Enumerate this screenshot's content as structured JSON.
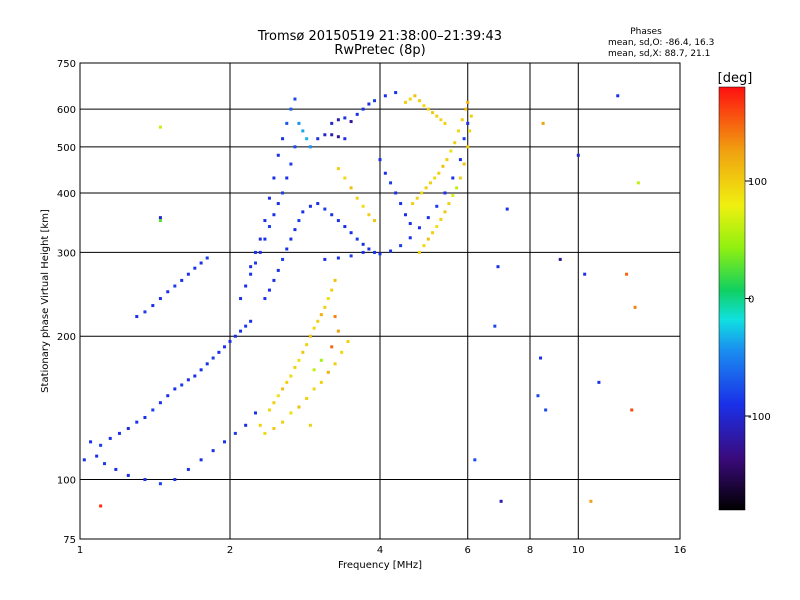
{
  "chart_data": {
    "type": "scatter",
    "title": "Tromsø 20150519 21:38:00–21:39:43",
    "subtitle": "RwPretec (8p)",
    "xlabel": "Frequency [MHz]",
    "ylabel": "Stationary phase Virtual Height [km]",
    "x_scale": "log",
    "y_scale": "log",
    "xlim": [
      1,
      16
    ],
    "ylim": [
      75,
      750
    ],
    "x_ticks": [
      1,
      2,
      4,
      6,
      8,
      10,
      16
    ],
    "x_tick_labels": [
      "1",
      "2",
      "4",
      "6",
      "8",
      "10",
      "16"
    ],
    "y_ticks": [
      75,
      100,
      200,
      300,
      400,
      500,
      600,
      750
    ],
    "y_tick_labels": [
      "75",
      "100",
      "200",
      "300",
      "400",
      "500",
      "600",
      "750"
    ],
    "grid": true,
    "phase_info": {
      "header": "Phases",
      "line_o": "mean, sd,O: -86.4, 16.3",
      "line_x": "mean, sd,X: 88.7, 21.1"
    },
    "colorbar": {
      "label": "[deg]",
      "range": [
        -180,
        180
      ],
      "ticks": [
        100,
        0,
        -100
      ],
      "tick_labels": [
        "100",
        "0",
        "-100"
      ]
    },
    "colors": {
      "o_mode": "#1a3fe0",
      "o_mode_light": "#2a8be8",
      "x_mode": "#e8d21a",
      "x_mode_green": "#8ee82a",
      "noise": "#e06020"
    },
    "points": [
      [
        1.05,
        120,
        -100
      ],
      [
        1.1,
        118,
        -95
      ],
      [
        1.15,
        122,
        -100
      ],
      [
        1.2,
        125,
        -100
      ],
      [
        1.25,
        128,
        -105
      ],
      [
        1.3,
        132,
        -100
      ],
      [
        1.35,
        135,
        -100
      ],
      [
        1.4,
        140,
        -95
      ],
      [
        1.45,
        145,
        -100
      ],
      [
        1.5,
        150,
        -100
      ],
      [
        1.55,
        155,
        -100
      ],
      [
        1.6,
        158,
        -95
      ],
      [
        1.65,
        162,
        -100
      ],
      [
        1.7,
        165,
        -100
      ],
      [
        1.75,
        170,
        -100
      ],
      [
        1.8,
        175,
        -100
      ],
      [
        1.85,
        180,
        -95
      ],
      [
        1.9,
        185,
        -100
      ],
      [
        1.95,
        190,
        -100
      ],
      [
        2.0,
        195,
        -100
      ],
      [
        2.05,
        200,
        -100
      ],
      [
        2.1,
        205,
        -100
      ],
      [
        2.15,
        210,
        -95
      ],
      [
        2.2,
        215,
        -100
      ],
      [
        1.02,
        110,
        -100
      ],
      [
        1.08,
        112,
        -100
      ],
      [
        1.12,
        108,
        -95
      ],
      [
        1.18,
        105,
        -100
      ],
      [
        1.25,
        102,
        -100
      ],
      [
        1.35,
        100,
        -100
      ],
      [
        1.45,
        98,
        -95
      ],
      [
        1.55,
        100,
        -100
      ],
      [
        1.65,
        105,
        -100
      ],
      [
        1.75,
        110,
        -100
      ],
      [
        1.85,
        115,
        -100
      ],
      [
        1.95,
        120,
        -100
      ],
      [
        2.05,
        125,
        -95
      ],
      [
        2.15,
        130,
        -100
      ],
      [
        2.25,
        138,
        -100
      ],
      [
        1.3,
        220,
        -100
      ],
      [
        1.35,
        225,
        -95
      ],
      [
        1.4,
        232,
        -100
      ],
      [
        1.45,
        240,
        -100
      ],
      [
        1.5,
        248,
        -100
      ],
      [
        1.55,
        255,
        -95
      ],
      [
        1.6,
        262,
        -100
      ],
      [
        1.65,
        270,
        -100
      ],
      [
        1.7,
        278,
        -100
      ],
      [
        1.75,
        285,
        -100
      ],
      [
        1.8,
        292,
        -95
      ],
      [
        2.1,
        240,
        -100
      ],
      [
        2.15,
        255,
        -100
      ],
      [
        2.2,
        270,
        -100
      ],
      [
        2.25,
        285,
        -95
      ],
      [
        2.3,
        300,
        -100
      ],
      [
        2.35,
        320,
        -100
      ],
      [
        2.4,
        340,
        -95
      ],
      [
        2.45,
        360,
        -100
      ],
      [
        2.5,
        380,
        -100
      ],
      [
        2.55,
        400,
        -95
      ],
      [
        2.6,
        430,
        -100
      ],
      [
        2.65,
        460,
        -95
      ],
      [
        2.7,
        500,
        -90
      ],
      [
        2.6,
        560,
        -85
      ],
      [
        2.65,
        600,
        -80
      ],
      [
        2.7,
        630,
        -90
      ],
      [
        2.75,
        560,
        -60
      ],
      [
        2.8,
        540,
        -50
      ],
      [
        2.85,
        520,
        -40
      ],
      [
        2.9,
        500,
        -60
      ],
      [
        2.55,
        520,
        -100
      ],
      [
        2.5,
        480,
        -100
      ],
      [
        2.45,
        430,
        -100
      ],
      [
        2.4,
        390,
        -100
      ],
      [
        2.35,
        350,
        -100
      ],
      [
        2.3,
        320,
        -100
      ],
      [
        2.25,
        300,
        -100
      ],
      [
        2.2,
        280,
        -100
      ],
      [
        2.35,
        240,
        -100
      ],
      [
        2.4,
        250,
        -100
      ],
      [
        2.45,
        262,
        -100
      ],
      [
        2.5,
        275,
        -100
      ],
      [
        2.55,
        290,
        -95
      ],
      [
        2.6,
        305,
        -100
      ],
      [
        2.65,
        320,
        -100
      ],
      [
        2.7,
        335,
        -100
      ],
      [
        2.75,
        350,
        -95
      ],
      [
        2.8,
        365,
        -100
      ],
      [
        2.9,
        375,
        -100
      ],
      [
        3.0,
        380,
        -100
      ],
      [
        3.1,
        370,
        -95
      ],
      [
        3.2,
        360,
        -100
      ],
      [
        3.3,
        350,
        -100
      ],
      [
        3.4,
        340,
        -100
      ],
      [
        3.5,
        330,
        -100
      ],
      [
        3.6,
        320,
        -95
      ],
      [
        3.7,
        312,
        -100
      ],
      [
        3.8,
        305,
        -100
      ],
      [
        3.9,
        300,
        -100
      ],
      [
        4.0,
        298,
        -100
      ],
      [
        4.2,
        302,
        -100
      ],
      [
        4.4,
        310,
        -95
      ],
      [
        4.6,
        322,
        -100
      ],
      [
        4.8,
        338,
        -100
      ],
      [
        5.0,
        355,
        -100
      ],
      [
        5.2,
        375,
        -95
      ],
      [
        5.4,
        400,
        -100
      ],
      [
        5.6,
        430,
        -100
      ],
      [
        5.8,
        470,
        -100
      ],
      [
        5.9,
        520,
        -95
      ],
      [
        6.0,
        560,
        -100
      ],
      [
        3.1,
        290,
        -100
      ],
      [
        3.3,
        292,
        -100
      ],
      [
        3.5,
        295,
        -95
      ],
      [
        3.7,
        300,
        -100
      ],
      [
        3.2,
        560,
        -110
      ],
      [
        3.3,
        570,
        -120
      ],
      [
        3.4,
        575,
        -100
      ],
      [
        3.5,
        565,
        -130
      ],
      [
        3.6,
        585,
        -100
      ],
      [
        3.7,
        600,
        -100
      ],
      [
        3.8,
        615,
        -100
      ],
      [
        3.9,
        625,
        -95
      ],
      [
        4.1,
        640,
        -100
      ],
      [
        4.3,
        650,
        -100
      ],
      [
        3.0,
        520,
        -100
      ],
      [
        3.1,
        530,
        -110
      ],
      [
        3.2,
        530,
        -120
      ],
      [
        3.3,
        525,
        -130
      ],
      [
        3.4,
        520,
        -100
      ],
      [
        4.0,
        470,
        -100
      ],
      [
        4.1,
        440,
        -100
      ],
      [
        4.2,
        420,
        -95
      ],
      [
        4.3,
        400,
        -100
      ],
      [
        4.4,
        380,
        -100
      ],
      [
        4.5,
        360,
        -100
      ],
      [
        4.6,
        345,
        -100
      ],
      [
        2.4,
        140,
        95
      ],
      [
        2.45,
        145,
        100
      ],
      [
        2.5,
        150,
        90
      ],
      [
        2.55,
        155,
        110
      ],
      [
        2.6,
        160,
        100
      ],
      [
        2.65,
        165,
        95
      ],
      [
        2.7,
        172,
        100
      ],
      [
        2.75,
        178,
        90
      ],
      [
        2.8,
        185,
        105
      ],
      [
        2.85,
        192,
        100
      ],
      [
        2.9,
        200,
        110
      ],
      [
        2.95,
        208,
        95
      ],
      [
        3.0,
        215,
        100
      ],
      [
        3.05,
        222,
        120
      ],
      [
        3.1,
        230,
        100
      ],
      [
        3.15,
        240,
        90
      ],
      [
        3.2,
        250,
        100
      ],
      [
        3.25,
        262,
        110
      ],
      [
        2.3,
        130,
        100
      ],
      [
        2.35,
        125,
        95
      ],
      [
        2.45,
        128,
        105
      ],
      [
        2.55,
        132,
        100
      ],
      [
        2.65,
        138,
        90
      ],
      [
        2.75,
        142,
        110
      ],
      [
        2.85,
        148,
        100
      ],
      [
        2.95,
        155,
        95
      ],
      [
        3.05,
        160,
        100
      ],
      [
        3.15,
        168,
        120
      ],
      [
        3.25,
        175,
        100
      ],
      [
        3.35,
        185,
        95
      ],
      [
        3.45,
        195,
        100
      ],
      [
        3.3,
        205,
        130
      ],
      [
        3.25,
        220,
        140
      ],
      [
        3.2,
        190,
        150
      ],
      [
        2.95,
        170,
        60
      ],
      [
        3.05,
        178,
        50
      ],
      [
        4.8,
        300,
        100
      ],
      [
        4.9,
        310,
        95
      ],
      [
        5.0,
        320,
        110
      ],
      [
        5.1,
        330,
        100
      ],
      [
        5.2,
        340,
        90
      ],
      [
        5.3,
        352,
        100
      ],
      [
        5.4,
        365,
        105
      ],
      [
        5.5,
        380,
        100
      ],
      [
        5.6,
        395,
        70
      ],
      [
        5.7,
        410,
        60
      ],
      [
        5.8,
        430,
        100
      ],
      [
        5.9,
        460,
        110
      ],
      [
        6.0,
        500,
        100
      ],
      [
        6.05,
        540,
        95
      ],
      [
        6.1,
        580,
        100
      ],
      [
        6.0,
        620,
        120
      ],
      [
        5.95,
        600,
        110
      ],
      [
        5.85,
        570,
        100
      ],
      [
        5.75,
        540,
        95
      ],
      [
        5.65,
        510,
        100
      ],
      [
        5.55,
        490,
        90
      ],
      [
        5.45,
        470,
        100
      ],
      [
        5.35,
        455,
        110
      ],
      [
        5.25,
        440,
        100
      ],
      [
        5.15,
        430,
        95
      ],
      [
        5.05,
        420,
        100
      ],
      [
        4.95,
        410,
        100
      ],
      [
        4.85,
        400,
        95
      ],
      [
        4.75,
        390,
        100
      ],
      [
        4.65,
        380,
        100
      ],
      [
        3.3,
        450,
        100
      ],
      [
        3.4,
        430,
        95
      ],
      [
        3.5,
        410,
        110
      ],
      [
        3.6,
        390,
        100
      ],
      [
        3.7,
        375,
        90
      ],
      [
        3.8,
        360,
        100
      ],
      [
        3.9,
        350,
        105
      ],
      [
        4.5,
        620,
        100
      ],
      [
        4.6,
        630,
        95
      ],
      [
        4.7,
        640,
        110
      ],
      [
        4.8,
        625,
        100
      ],
      [
        4.9,
        610,
        90
      ],
      [
        5.0,
        600,
        100
      ],
      [
        5.1,
        590,
        105
      ],
      [
        5.2,
        580,
        100
      ],
      [
        5.3,
        570,
        95
      ],
      [
        5.4,
        560,
        100
      ],
      [
        1.45,
        355,
        -110
      ],
      [
        1.45,
        550,
        60
      ],
      [
        1.45,
        350,
        20
      ],
      [
        7.0,
        90,
        -120
      ],
      [
        6.9,
        280,
        -100
      ],
      [
        6.8,
        210,
        -90
      ],
      [
        8.5,
        560,
        130
      ],
      [
        8.4,
        180,
        -100
      ],
      [
        8.3,
        150,
        -90
      ],
      [
        10.3,
        270,
        -100
      ],
      [
        10.0,
        480,
        -110
      ],
      [
        11.0,
        160,
        -100
      ],
      [
        12.5,
        270,
        150
      ],
      [
        12.0,
        640,
        -100
      ],
      [
        12.8,
        140,
        160
      ],
      [
        13.2,
        420,
        60
      ],
      [
        13.0,
        230,
        140
      ],
      [
        6.2,
        110,
        -90
      ],
      [
        7.2,
        370,
        -100
      ],
      [
        9.2,
        290,
        -130
      ],
      [
        8.6,
        140,
        -90
      ],
      [
        10.6,
        90,
        130
      ],
      [
        1.1,
        88,
        170
      ],
      [
        2.9,
        130,
        100
      ]
    ]
  }
}
